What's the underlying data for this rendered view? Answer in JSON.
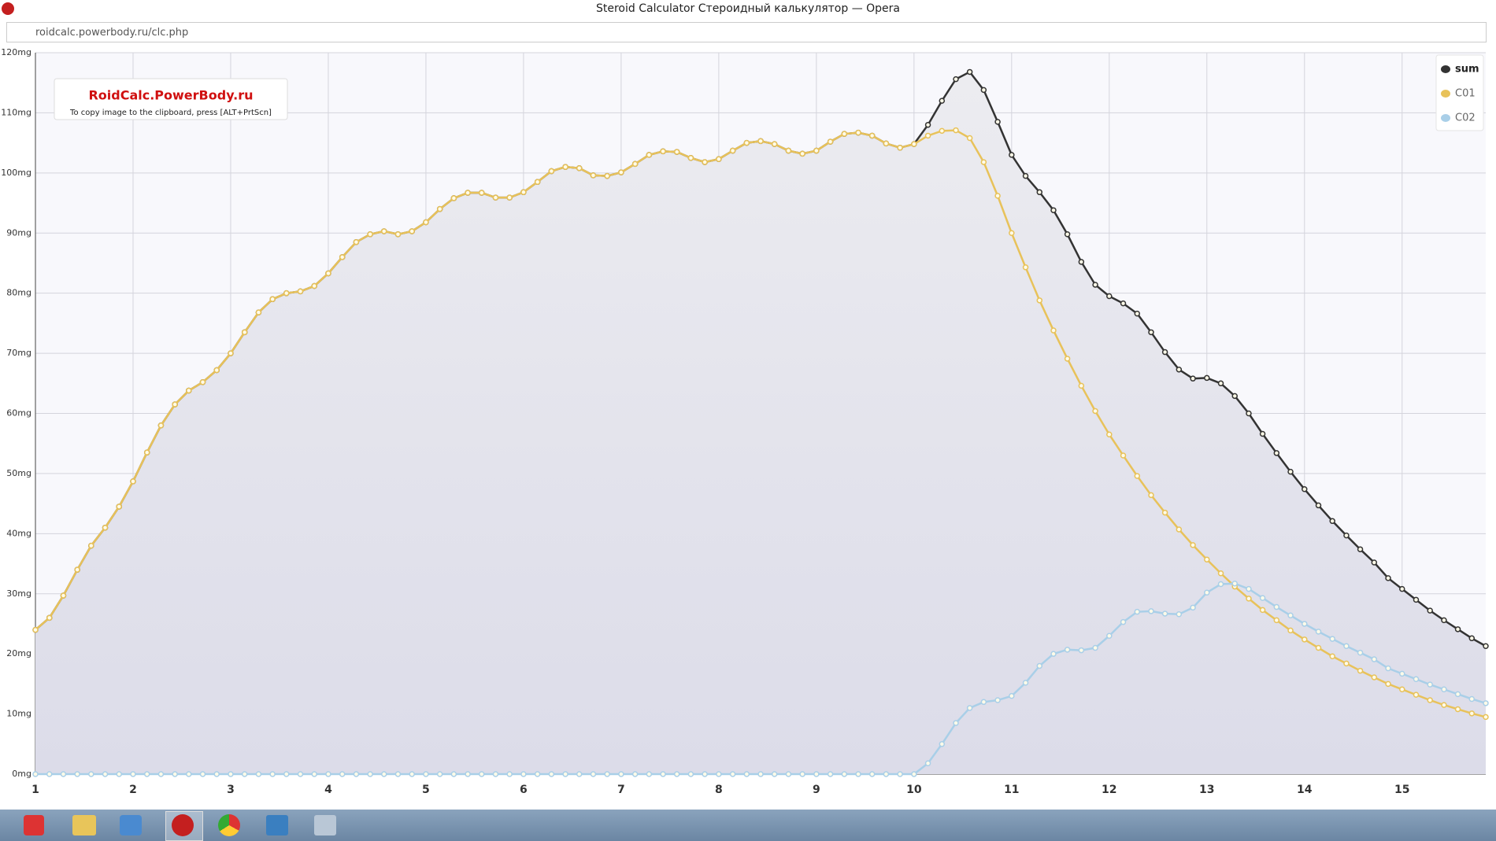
{
  "window": {
    "title": "Steroid Calculator Стероидный калькулятор — Opera",
    "url": "roidcalc.powerbody.ru/clc.php"
  },
  "watermark": {
    "title": "RoidCalc.PowerBody.ru",
    "note": "To copy image to the clipboard, press [ALT+PrtScn]"
  },
  "chart_data": {
    "type": "line",
    "x": [
      1,
      1.143,
      1.286,
      1.429,
      1.571,
      1.714,
      1.857,
      2,
      2.143,
      2.286,
      2.429,
      2.571,
      2.714,
      2.857,
      3,
      3.143,
      3.286,
      3.429,
      3.571,
      3.714,
      3.857,
      4,
      4.143,
      4.286,
      4.429,
      4.571,
      4.714,
      4.857,
      5,
      5.143,
      5.286,
      5.429,
      5.571,
      5.714,
      5.857,
      6,
      6.143,
      6.286,
      6.429,
      6.571,
      6.714,
      6.857,
      7,
      7.143,
      7.286,
      7.429,
      7.571,
      7.714,
      7.857,
      8,
      8.143,
      8.286,
      8.429,
      8.571,
      8.714,
      8.857,
      9,
      9.143,
      9.286,
      9.429,
      9.571,
      9.714,
      9.857,
      10,
      10.143,
      10.286,
      10.429,
      10.571,
      10.714,
      10.857,
      11,
      11.143,
      11.286,
      11.429,
      11.571,
      11.714,
      11.857,
      12,
      12.143,
      12.286,
      12.429,
      12.571,
      12.714,
      12.857,
      13,
      13.143,
      13.286,
      13.429,
      13.571,
      13.714,
      13.857,
      14,
      14.143,
      14.286,
      14.429,
      14.571,
      14.714,
      14.857,
      15,
      15.143,
      15.286,
      15.429,
      15.571,
      15.714,
      15.857
    ],
    "series": [
      {
        "name": "sum",
        "color": "#333333",
        "values": [
          24,
          26,
          29.7,
          34,
          38,
          41,
          44.5,
          48.7,
          53.5,
          58,
          61.5,
          63.8,
          65.2,
          67.2,
          70,
          73.5,
          76.8,
          79,
          80,
          80.3,
          81.2,
          83.3,
          86,
          88.5,
          89.8,
          90.3,
          89.8,
          90.3,
          91.8,
          94,
          95.8,
          96.7,
          96.7,
          95.9,
          95.9,
          96.8,
          98.5,
          100.3,
          101,
          100.8,
          99.6,
          99.5,
          100.1,
          101.5,
          103,
          103.6,
          103.5,
          102.5,
          101.8,
          102.3,
          103.7,
          105,
          105.3,
          104.8,
          103.7,
          103.2,
          103.7,
          105.2,
          106.5,
          106.7,
          106.2,
          104.9,
          104.2,
          104.8,
          108,
          112,
          115.6,
          116.8,
          113.8,
          108.5,
          103,
          99.5,
          96.8,
          93.8,
          89.8,
          85.2,
          81.4,
          79.5,
          78.3,
          76.6,
          73.5,
          70.2,
          67.3,
          65.8,
          65.9,
          65,
          62.9,
          60,
          56.6,
          53.4,
          50.3,
          47.4,
          44.7,
          42.1,
          39.7,
          37.4,
          35.2,
          32.6,
          30.8,
          29,
          27.2,
          25.6,
          24.1,
          22.6,
          21.3
        ]
      },
      {
        "name": "C01",
        "color": "#e8c25a",
        "values": [
          24,
          26,
          29.7,
          34,
          38,
          41,
          44.5,
          48.7,
          53.5,
          58,
          61.5,
          63.8,
          65.2,
          67.2,
          70,
          73.5,
          76.8,
          79,
          80,
          80.3,
          81.2,
          83.3,
          86,
          88.5,
          89.8,
          90.3,
          89.8,
          90.3,
          91.8,
          94,
          95.8,
          96.7,
          96.7,
          95.9,
          95.9,
          96.8,
          98.5,
          100.3,
          101,
          100.8,
          99.6,
          99.5,
          100.1,
          101.5,
          103,
          103.6,
          103.5,
          102.5,
          101.8,
          102.3,
          103.7,
          105,
          105.3,
          104.8,
          103.7,
          103.2,
          103.7,
          105.2,
          106.5,
          106.7,
          106.2,
          104.9,
          104.2,
          104.8,
          106.2,
          107,
          107.1,
          105.8,
          101.8,
          96.2,
          90,
          84.3,
          78.8,
          73.8,
          69.1,
          64.6,
          60.4,
          56.5,
          53,
          49.6,
          46.4,
          43.5,
          40.7,
          38.1,
          35.7,
          33.4,
          31.2,
          29.2,
          27.3,
          25.6,
          23.9,
          22.4,
          21,
          19.6,
          18.4,
          17.2,
          16.1,
          15,
          14.1,
          13.2,
          12.3,
          11.5,
          10.8,
          10.1,
          9.5
        ]
      },
      {
        "name": "C02",
        "color": "#a9cfe8",
        "values": [
          0,
          0,
          0,
          0,
          0,
          0,
          0,
          0,
          0,
          0,
          0,
          0,
          0,
          0,
          0,
          0,
          0,
          0,
          0,
          0,
          0,
          0,
          0,
          0,
          0,
          0,
          0,
          0,
          0,
          0,
          0,
          0,
          0,
          0,
          0,
          0,
          0,
          0,
          0,
          0,
          0,
          0,
          0,
          0,
          0,
          0,
          0,
          0,
          0,
          0,
          0,
          0,
          0,
          0,
          0,
          0,
          0,
          0,
          0,
          0,
          0,
          0,
          0,
          0,
          1.8,
          5,
          8.5,
          11,
          12,
          12.3,
          13,
          15.2,
          18,
          20,
          20.7,
          20.6,
          21,
          23,
          25.3,
          27,
          27.1,
          26.7,
          26.6,
          27.7,
          30.2,
          31.6,
          31.7,
          30.8,
          29.3,
          27.8,
          26.4,
          25,
          23.7,
          22.5,
          21.3,
          20.2,
          19.1,
          17.6,
          16.7,
          15.8,
          14.9,
          14.1,
          13.3,
          12.5,
          11.8
        ]
      }
    ],
    "xlim": [
      1,
      15.857
    ],
    "xticks": [
      1,
      2,
      3,
      4,
      5,
      6,
      7,
      8,
      9,
      10,
      11,
      12,
      13,
      14,
      15
    ],
    "ylim": [
      0,
      120
    ],
    "yticks": [
      {
        "value": 0,
        "label": "0mg"
      },
      {
        "value": 10,
        "label": "10mg"
      },
      {
        "value": 20,
        "label": "20mg"
      },
      {
        "value": 30,
        "label": "30mg"
      },
      {
        "value": 40,
        "label": "40mg"
      },
      {
        "value": 50,
        "label": "50mg"
      },
      {
        "value": 60,
        "label": "60mg"
      },
      {
        "value": 70,
        "label": "70mg"
      },
      {
        "value": 80,
        "label": "80mg"
      },
      {
        "value": 90,
        "label": "90mg"
      },
      {
        "value": 100,
        "label": "100mg"
      },
      {
        "value": 110,
        "label": "110mg"
      },
      {
        "value": 120,
        "label": "120mg"
      }
    ],
    "grid": true,
    "legend": "top-right"
  }
}
